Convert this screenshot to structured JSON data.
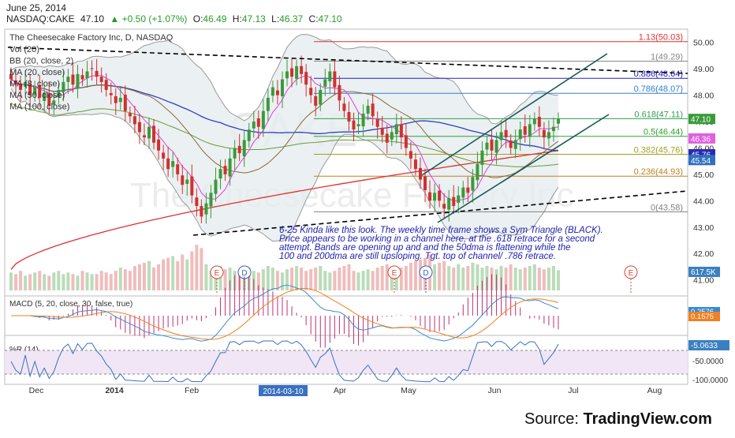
{
  "header": {
    "date": "June 25, 2014",
    "symbol": "NASDAQ:CAKE",
    "last": "47.10",
    "change": "+0.50 (+1.07%)",
    "ohlc": [
      {
        "k": "O:",
        "v": "46.49"
      },
      {
        "k": "H:",
        "v": "47.13"
      },
      {
        "k": "L:",
        "v": "46.37"
      },
      {
        "k": "C:",
        "v": "47.10"
      }
    ]
  },
  "chart_title": "The Cheesecake Factory Inc, D, NASDAQ",
  "indicators": [
    "Vol (20)",
    "BB (20, close, 2)",
    "MA (20, close)",
    "MA (8, close)",
    "MA (50, close)",
    "MA (100, close)"
  ],
  "watermark": {
    "symbol": "CAKE",
    "name": "The Cheesecake Factory Inc"
  },
  "annotation": {
    "lines": [
      "6-25 Kinda like this look.  The weekly time frame shows a Sym Triangle (BLACK).",
      "Price appears to be working in a channel here, at the .618 retrace for a second",
      "attempt.  Bands are opening up and and the 50dma is flattening while the",
      "100 and 200dma are still upsloping. Tgt. top of channel/ .786 retrace."
    ]
  },
  "fib_levels": [
    {
      "label": "1.13(50.03)",
      "price": 50.03,
      "color": "#e03030"
    },
    {
      "label": "1(49.29)",
      "price": 49.29,
      "color": "#888888"
    },
    {
      "label": "0.886(48.64)",
      "price": 48.64,
      "color": "#2020c0"
    },
    {
      "label": "0.786(48.07)",
      "price": 48.07,
      "color": "#3080d0"
    },
    {
      "label": "0.618(47.11)",
      "price": 47.11,
      "color": "#30a050"
    },
    {
      "label": "0.5(46.44)",
      "price": 46.44,
      "color": "#30a030"
    },
    {
      "label": "0.382(45.76)",
      "price": 45.76,
      "color": "#a0a020"
    },
    {
      "label": "0.236(44.93)",
      "price": 44.93,
      "color": "#c08020"
    },
    {
      "label": "0(43.58)",
      "price": 43.58,
      "color": "#808080"
    }
  ],
  "price_axis": {
    "ticks": [
      "50.00",
      "49.00",
      "48.00",
      "47.00",
      "46.00",
      "45.00",
      "44.00",
      "43.00",
      "42.00",
      "41.00"
    ],
    "min": 40.6,
    "max": 50.5
  },
  "price_badges": [
    {
      "text": "47.10",
      "bg": "#3a9a3a",
      "fg": "#ffffff",
      "price": 47.1
    },
    {
      "text": "46.36",
      "bg": "#e060e0",
      "fg": "#ffffff",
      "price": 46.36
    },
    {
      "text": "45.76",
      "bg": "#2a2ab0",
      "fg": "#ffffff",
      "price": 45.76
    },
    {
      "text": "45.54",
      "bg": "#3070c0",
      "fg": "#ffffff",
      "price": 45.54
    }
  ],
  "volume_badge": "617.5K",
  "macd": {
    "label": "MACD (5, 20, close, 30, false, true)",
    "badges": [
      {
        "text": "0.2576",
        "bg": "#3a8ad0"
      },
      {
        "text": "0.1575",
        "bg": "#f08020"
      }
    ]
  },
  "rsi": {
    "label": "%R (14)",
    "ticks": [
      "-50.0000",
      "-100.0000"
    ],
    "badge": "-5.0633",
    "range": [
      -100,
      0
    ]
  },
  "x_axis": {
    "labels": [
      "Dec",
      "2014",
      "Feb",
      "Apr",
      "May",
      "Jun",
      "Jul",
      "Aug"
    ],
    "highlight": "2014-03-10"
  },
  "events": [
    "E",
    "D",
    "E",
    "D",
    "E"
  ],
  "source": {
    "prefix": "Source: ",
    "brand": "TradingView.com"
  },
  "colors": {
    "up": "#3a9a3a",
    "down": "#d03030",
    "bb": "#9a9a9a",
    "ma8": "#e040e0",
    "ma20": "#8a6a3a",
    "ma50": "#3040c0",
    "ma100": "#6a9a3a",
    "ma200": "#e03030",
    "channel": "#1a5a5a",
    "triangle": "#000000"
  },
  "chart_data": {
    "type": "candlestick",
    "title": "The Cheesecake Factory Inc, D, NASDAQ",
    "closes": [
      48.6,
      48.4,
      48.2,
      48.5,
      48.0,
      48.3,
      47.9,
      48.1,
      47.6,
      47.8,
      48.2,
      48.5,
      48.7,
      48.4,
      48.8,
      48.6,
      48.9,
      49.0,
      48.7,
      48.5,
      48.2,
      48.0,
      47.7,
      47.9,
      47.4,
      47.2,
      46.9,
      46.6,
      46.4,
      46.8,
      46.2,
      45.9,
      45.6,
      45.2,
      45.5,
      45.0,
      44.6,
      44.8,
      44.2,
      43.8,
      43.4,
      43.9,
      44.3,
      44.8,
      45.2,
      45.0,
      45.6,
      46.0,
      45.8,
      46.3,
      46.7,
      47.0,
      46.8,
      47.4,
      47.9,
      48.3,
      48.0,
      48.6,
      48.9,
      48.7,
      49.1,
      48.8,
      48.4,
      48.0,
      47.6,
      48.2,
      48.6,
      48.9,
      48.3,
      47.8,
      47.4,
      47.0,
      46.7,
      46.9,
      47.3,
      47.6,
      47.2,
      46.8,
      46.5,
      46.2,
      46.6,
      46.9,
      46.4,
      46.0,
      45.6,
      45.2,
      44.8,
      44.4,
      44.0,
      44.3,
      44.0,
      43.7,
      44.1,
      43.8,
      44.2,
      44.5,
      44.3,
      44.9,
      45.4,
      45.9,
      46.2,
      45.9,
      46.3,
      46.6,
      46.4,
      46.0,
      46.3,
      46.7,
      46.5,
      46.9,
      47.1,
      46.8,
      46.4,
      46.6,
      46.8,
      47.1
    ],
    "volume": [
      0.55,
      0.5,
      0.6,
      0.45,
      0.5,
      0.55,
      0.6,
      0.5,
      0.45,
      0.55,
      0.6,
      0.5,
      0.55,
      0.5,
      0.45,
      0.6,
      0.55,
      0.5,
      0.5,
      0.6,
      0.55,
      0.5,
      0.6,
      0.7,
      0.65,
      0.6,
      0.75,
      0.8,
      0.85,
      0.9,
      0.7,
      0.8,
      0.95,
      1.0,
      1.05,
      0.9,
      1.1,
      0.95,
      1.2,
      1.4,
      1.3,
      0.8,
      0.6,
      0.7,
      0.75,
      0.65,
      0.7,
      0.6,
      0.55,
      0.65,
      0.7,
      0.6,
      0.55,
      0.65,
      0.75,
      0.7,
      0.6,
      0.55,
      0.65,
      0.7,
      0.75,
      0.7,
      0.6,
      0.65,
      0.7,
      0.75,
      0.6,
      0.55,
      0.6,
      0.7,
      0.75,
      0.8,
      0.6,
      0.55,
      0.6,
      0.65,
      0.6,
      0.7,
      0.75,
      0.8,
      0.6,
      0.55,
      0.7,
      0.75,
      0.85,
      0.9,
      0.95,
      1.0,
      1.1,
      0.8,
      0.85,
      0.9,
      0.75,
      0.7,
      0.8,
      0.7,
      0.75,
      0.85,
      0.8,
      0.7,
      0.75,
      0.7,
      0.65,
      0.75,
      0.7,
      0.8,
      0.7,
      0.65,
      0.7,
      0.75,
      0.8,
      0.7,
      0.65,
      0.7,
      0.75,
      0.62
    ],
    "ylim": [
      40.6,
      50.5
    ]
  }
}
